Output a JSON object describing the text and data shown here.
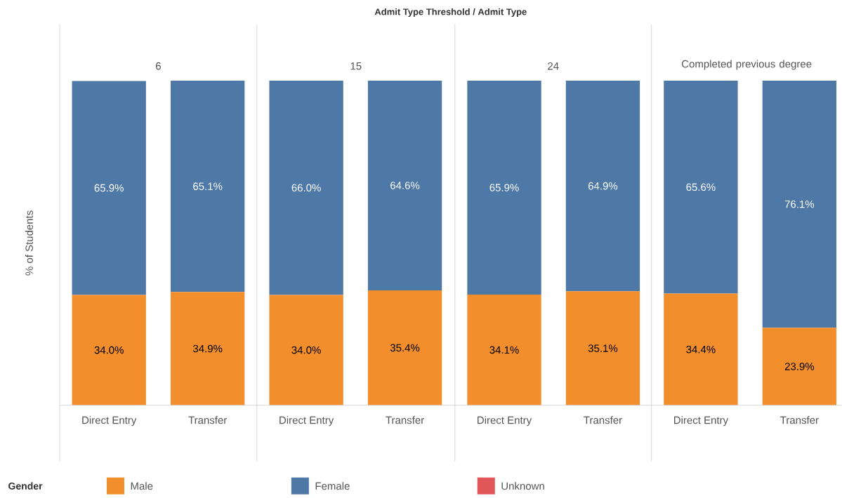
{
  "chart_data": [
    {
      "type": "bar",
      "title": "6",
      "annotations": [
        "Admit Type Threshold / Admit Type"
      ],
      "ylabel": "% of Students",
      "categories": [
        "Direct Entry",
        "Transfer"
      ],
      "stacked": true,
      "ylim": [
        0,
        100
      ],
      "tick_labels": "x",
      "legend": "bottom",
      "legend_title": "Gender",
      "series": [
        {
          "name": "Male",
          "color": "#f28e2b",
          "values": [
            34.0,
            34.9
          ],
          "value_labels": [
            "34.0%",
            "34.9%"
          ]
        },
        {
          "name": "Female",
          "color": "#4e79a7",
          "values": [
            65.9,
            65.1
          ],
          "value_labels": [
            "65.9%",
            "65.1%"
          ]
        },
        {
          "name": "Unknown",
          "color": "#e15759",
          "values": [
            null,
            null
          ]
        }
      ]
    },
    {
      "type": "bar",
      "title": "15",
      "categories": [
        "Direct Entry",
        "Transfer"
      ],
      "stacked": true,
      "ylim": [
        0,
        100
      ],
      "tick_labels": "x",
      "series": [
        {
          "color": "#f28e2b",
          "values": [
            34.0,
            35.4
          ],
          "value_labels": [
            "34.0%",
            "35.4%"
          ]
        },
        {
          "color": "#4e79a7",
          "values": [
            66.0,
            64.6
          ],
          "value_labels": [
            "66.0%",
            "64.6%"
          ]
        }
      ]
    },
    {
      "type": "bar",
      "title": "24",
      "categories": [
        "Direct Entry",
        "Transfer"
      ],
      "stacked": true,
      "ylim": [
        0,
        100
      ],
      "tick_labels": "x",
      "series": [
        {
          "color": "#f28e2b",
          "values": [
            34.1,
            35.1
          ],
          "value_labels": [
            "34.1%",
            "35.1%"
          ]
        },
        {
          "color": "#4e79a7",
          "values": [
            65.9,
            64.9
          ],
          "value_labels": [
            "65.9%",
            "64.9%"
          ]
        }
      ]
    },
    {
      "type": "bar",
      "title": "Completed previous degree",
      "categories": [
        "Direct Entry",
        "Transfer"
      ],
      "stacked": true,
      "ylim": [
        0,
        100
      ],
      "tick_labels": "x",
      "series": [
        {
          "color": "#f28e2b",
          "values": [
            34.4,
            23.9
          ],
          "value_labels": [
            "34.4%",
            "23.9%"
          ]
        },
        {
          "color": "#4e79a7",
          "values": [
            65.6,
            76.1
          ],
          "value_labels": [
            "65.6%",
            "76.1%"
          ]
        }
      ]
    }
  ]
}
